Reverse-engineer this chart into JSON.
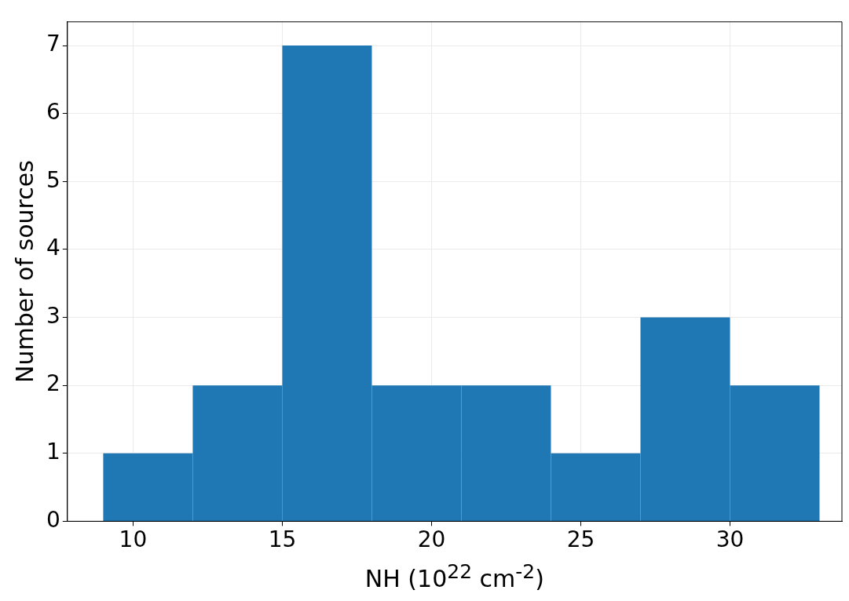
{
  "chart_data": {
    "type": "histogram",
    "xlabel": "NH (10$^{22}$ cm$^{-2}$)",
    "ylabel": "Number of sources",
    "bins": [
      9,
      12,
      15,
      18,
      21,
      24,
      27,
      30,
      33
    ],
    "values": [
      1,
      2,
      7,
      2,
      2,
      1,
      3,
      2
    ],
    "color": "#1f77b4",
    "xlim": [
      7.8,
      33.75
    ],
    "xticks": [
      10,
      15,
      20,
      25,
      30
    ],
    "ylim": [
      0,
      7.35
    ],
    "yticks": [
      0,
      1,
      2,
      3,
      4,
      5,
      6,
      7
    ],
    "grid": true
  }
}
